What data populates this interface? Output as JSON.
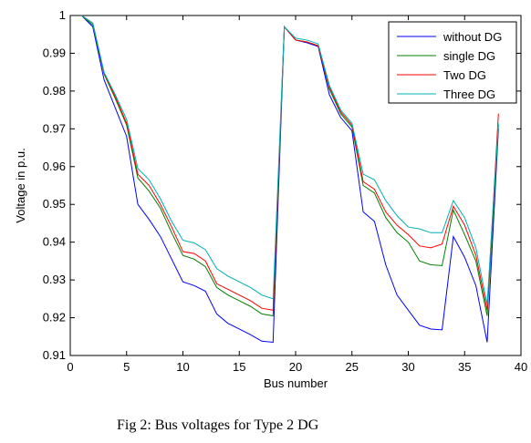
{
  "caption": "Fig 2:  Bus voltages for Type 2 DG",
  "chart_data": {
    "type": "line",
    "xlabel": "Bus number",
    "ylabel": "Voltage in p.u.",
    "xlim": [
      0,
      40
    ],
    "ylim": [
      0.91,
      1.0
    ],
    "xticks": [
      "0",
      "5",
      "10",
      "15",
      "20",
      "25",
      "30",
      "35",
      "40"
    ],
    "yticks": [
      "0.91",
      "0.92",
      "0.93",
      "0.94",
      "0.95",
      "0.96",
      "0.97",
      "0.98",
      "0.99",
      "1"
    ],
    "grid": false,
    "legend_position": "top-right",
    "x": [
      1,
      2,
      3,
      4,
      5,
      6,
      7,
      8,
      9,
      10,
      11,
      12,
      13,
      14,
      15,
      16,
      17,
      18,
      19,
      20,
      21,
      22,
      23,
      24,
      25,
      26,
      27,
      28,
      29,
      30,
      31,
      32,
      33,
      34,
      35,
      36,
      37,
      38
    ],
    "series": [
      {
        "name": "without DG",
        "color": "#0000ff",
        "values": [
          1.0,
          0.997,
          0.983,
          0.9755,
          0.968,
          0.95,
          0.946,
          0.9415,
          0.9355,
          0.9295,
          0.9285,
          0.927,
          0.921,
          0.9185,
          0.917,
          0.9155,
          0.9138,
          0.9135,
          0.997,
          0.9935,
          0.9928,
          0.9918,
          0.979,
          0.973,
          0.9695,
          0.948,
          0.9455,
          0.934,
          0.926,
          0.922,
          0.918,
          0.917,
          0.9168,
          0.9415,
          0.936,
          0.9285,
          0.9135,
          0.97
        ]
      },
      {
        "name": "single DG",
        "color": "#008000",
        "values": [
          1.0,
          0.9975,
          0.9845,
          0.978,
          0.971,
          0.957,
          0.9535,
          0.949,
          0.9425,
          0.9365,
          0.9355,
          0.9335,
          0.928,
          0.926,
          0.9245,
          0.923,
          0.921,
          0.9205,
          0.997,
          0.9935,
          0.993,
          0.992,
          0.9805,
          0.974,
          0.9705,
          0.955,
          0.953,
          0.9465,
          0.9425,
          0.94,
          0.935,
          0.934,
          0.9338,
          0.9485,
          0.942,
          0.935,
          0.9205,
          0.971
        ]
      },
      {
        "name": "Two DG",
        "color": "#ff0000",
        "values": [
          1.0,
          0.998,
          0.9848,
          0.9785,
          0.9715,
          0.958,
          0.955,
          0.95,
          0.944,
          0.9375,
          0.937,
          0.935,
          0.929,
          0.9275,
          0.926,
          0.9245,
          0.9225,
          0.922,
          0.997,
          0.9935,
          0.993,
          0.992,
          0.981,
          0.9745,
          0.971,
          0.956,
          0.954,
          0.948,
          0.9445,
          0.942,
          0.939,
          0.9385,
          0.9395,
          0.9495,
          0.9445,
          0.9365,
          0.922,
          0.974
        ]
      },
      {
        "name": "Three DG",
        "color": "#00b0b0",
        "values": [
          1.0,
          0.998,
          0.985,
          0.979,
          0.9725,
          0.9595,
          0.9565,
          0.9515,
          0.9455,
          0.9405,
          0.9398,
          0.938,
          0.933,
          0.931,
          0.9295,
          0.928,
          0.926,
          0.925,
          0.997,
          0.994,
          0.9935,
          0.9925,
          0.9815,
          0.975,
          0.9715,
          0.958,
          0.9565,
          0.951,
          0.947,
          0.944,
          0.9435,
          0.9425,
          0.9425,
          0.951,
          0.9465,
          0.9385,
          0.9235,
          0.9715
        ]
      }
    ]
  }
}
